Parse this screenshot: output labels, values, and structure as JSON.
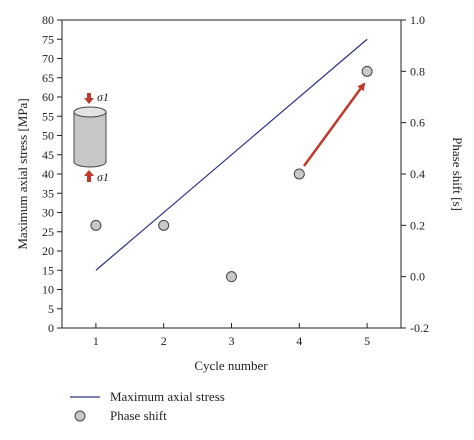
{
  "chart_data": {
    "type": "line",
    "title": "",
    "xlabel": "Cycle number",
    "ylabel_left": "Maximum axial stress [MPa]",
    "ylabel_right": "Phase shift [s]",
    "xlim": [
      0.5,
      5.5
    ],
    "ylim_left": [
      0,
      80
    ],
    "ylim_right": [
      -0.2,
      1.0
    ],
    "x_ticks": [
      "1",
      "2",
      "3",
      "4",
      "5"
    ],
    "y_left_ticks": [
      "0",
      "5",
      "10",
      "15",
      "20",
      "25",
      "30",
      "35",
      "40",
      "45",
      "50",
      "55",
      "60",
      "65",
      "70",
      "75",
      "80"
    ],
    "y_right_ticks": [
      "-0.2",
      "0.0",
      "0.2",
      "0.4",
      "0.6",
      "0.8",
      "1.0"
    ],
    "series": [
      {
        "name": "Maximum axial stress",
        "kind": "line",
        "axis": "left",
        "color": "#2e2e8a",
        "x": [
          1,
          5
        ],
        "y": [
          15,
          75
        ]
      },
      {
        "name": "Phase shift",
        "kind": "scatter",
        "axis": "right",
        "color": "#c8c8c8",
        "x": [
          1,
          2,
          3,
          4,
          5
        ],
        "y": [
          0.2,
          0.2,
          0.0,
          0.4,
          0.8
        ]
      }
    ],
    "arrow_color": "#c0392b",
    "annotation_labels": [
      "σ1",
      "σ1"
    ],
    "legend_position": "bottom-left",
    "grid": false
  }
}
